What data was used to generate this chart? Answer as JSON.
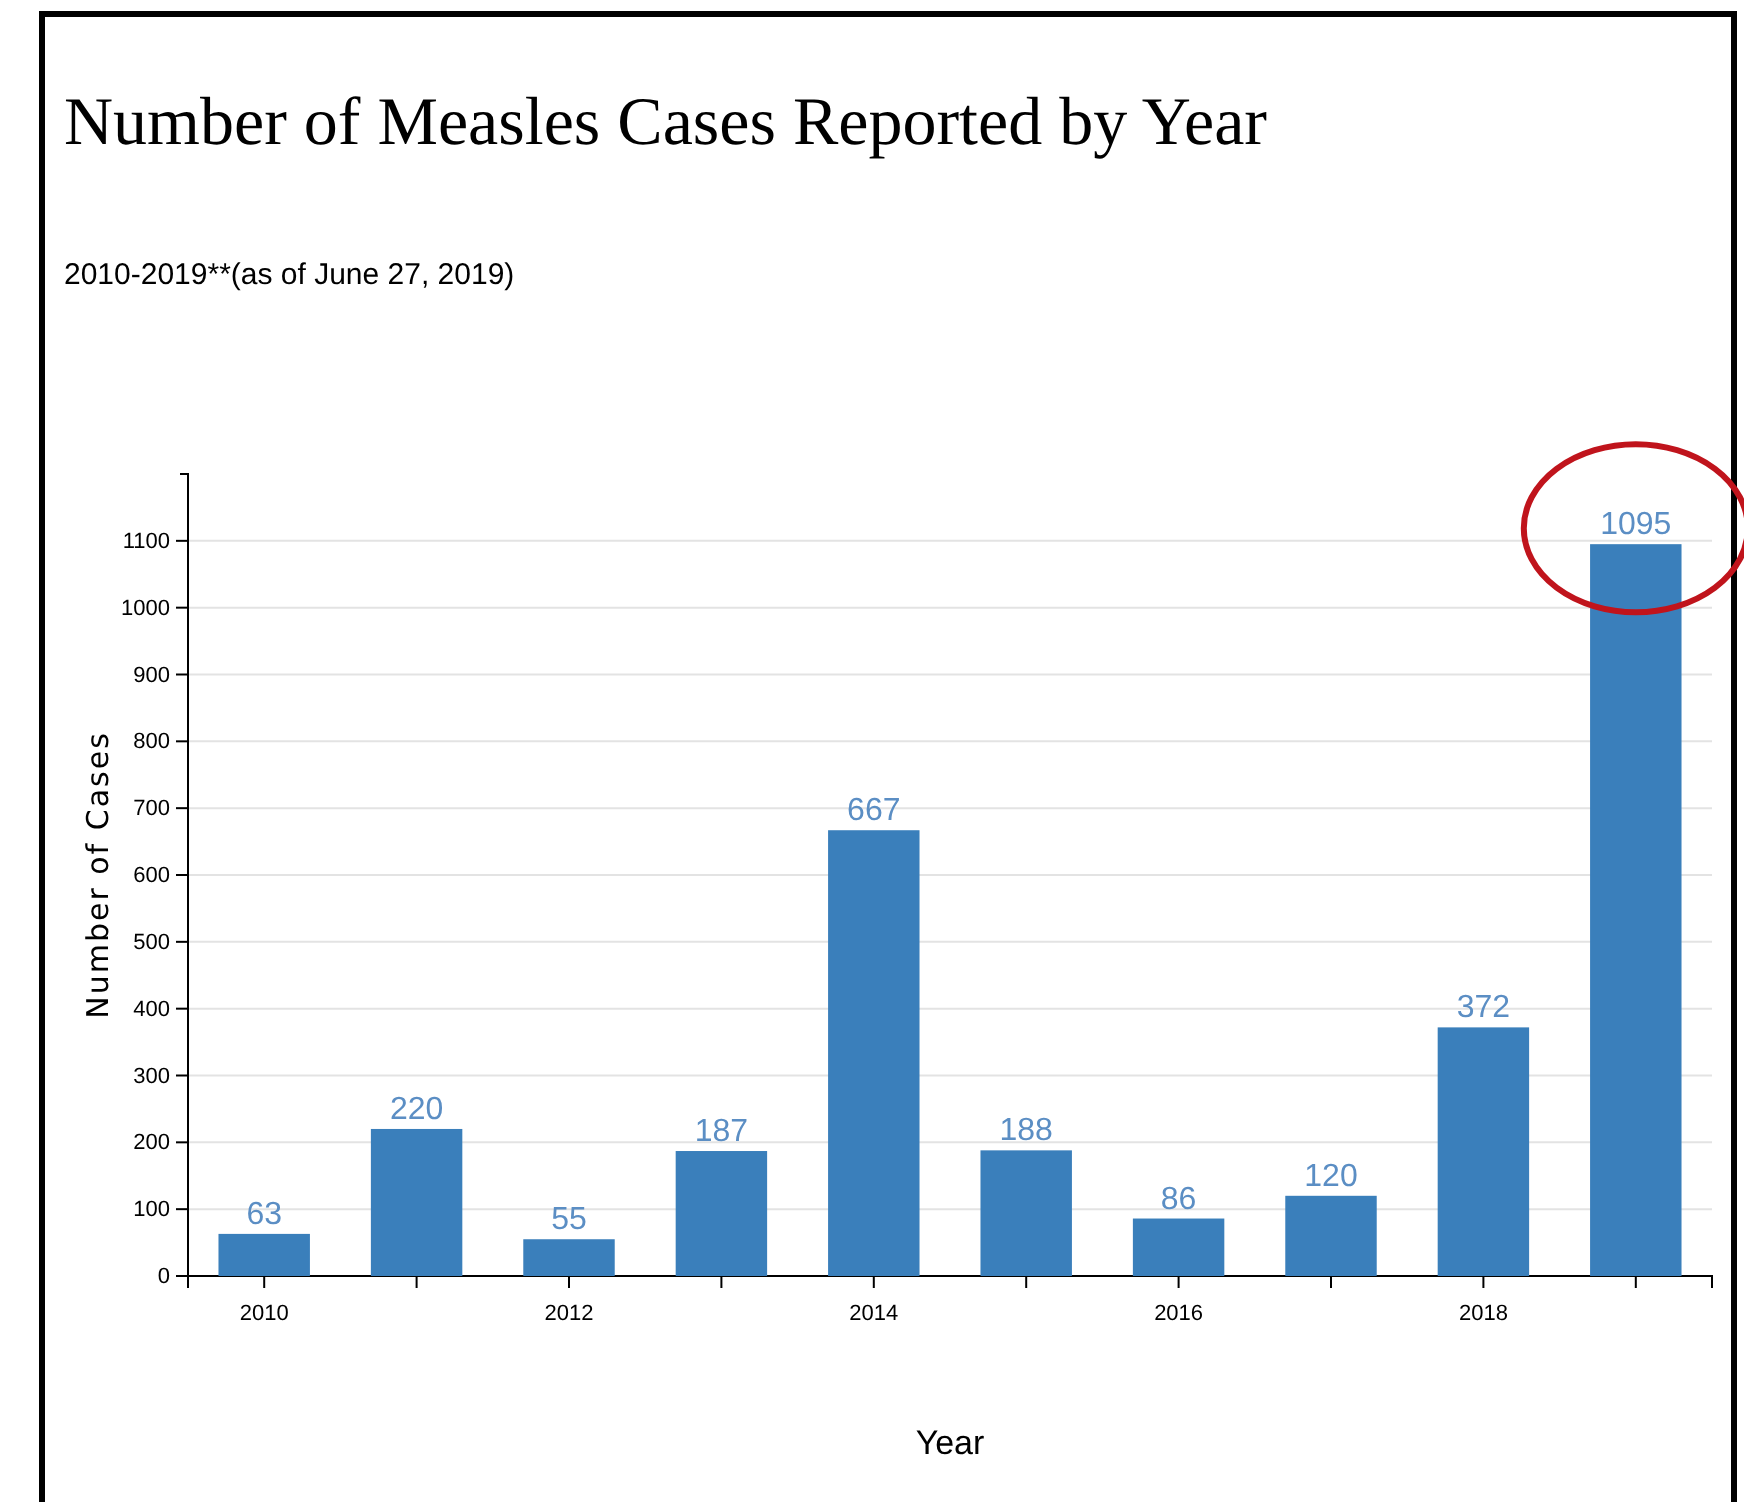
{
  "chart_data": {
    "type": "bar",
    "title": "Number of Measles Cases Reported by Year",
    "subtitle": "2010-2019**(as of June 27, 2019)",
    "xlabel": "Year",
    "ylabel": "Number of Cases",
    "categories": [
      "2010",
      null,
      "2012",
      null,
      "2014",
      null,
      "2016",
      null,
      "2018",
      null
    ],
    "values": [
      63,
      220,
      55,
      187,
      667,
      188,
      86,
      120,
      372,
      1095
    ],
    "color": "#3a7fbb",
    "data_labels": true,
    "ylim": [
      0,
      1200
    ],
    "yticks": [
      0,
      100,
      200,
      300,
      400,
      500,
      600,
      700,
      800,
      900,
      1000,
      1100
    ],
    "grid": "y"
  }
}
